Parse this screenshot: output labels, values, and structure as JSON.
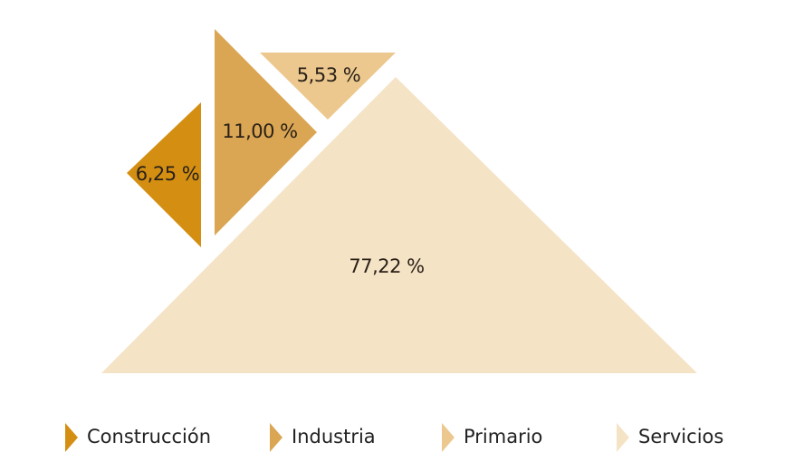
{
  "chart_data": {
    "type": "triangles",
    "categories": [
      "Construcción",
      "Industria",
      "Primario",
      "Servicios"
    ],
    "values": [
      6.25,
      11.0,
      5.53,
      77.22
    ],
    "value_labels": [
      "6,25 %",
      "11,00 %",
      "5,53 %",
      "77,22 %"
    ],
    "colors": [
      "#d48f12",
      "#dba653",
      "#ecc88e",
      "#f5e3c6"
    ]
  }
}
